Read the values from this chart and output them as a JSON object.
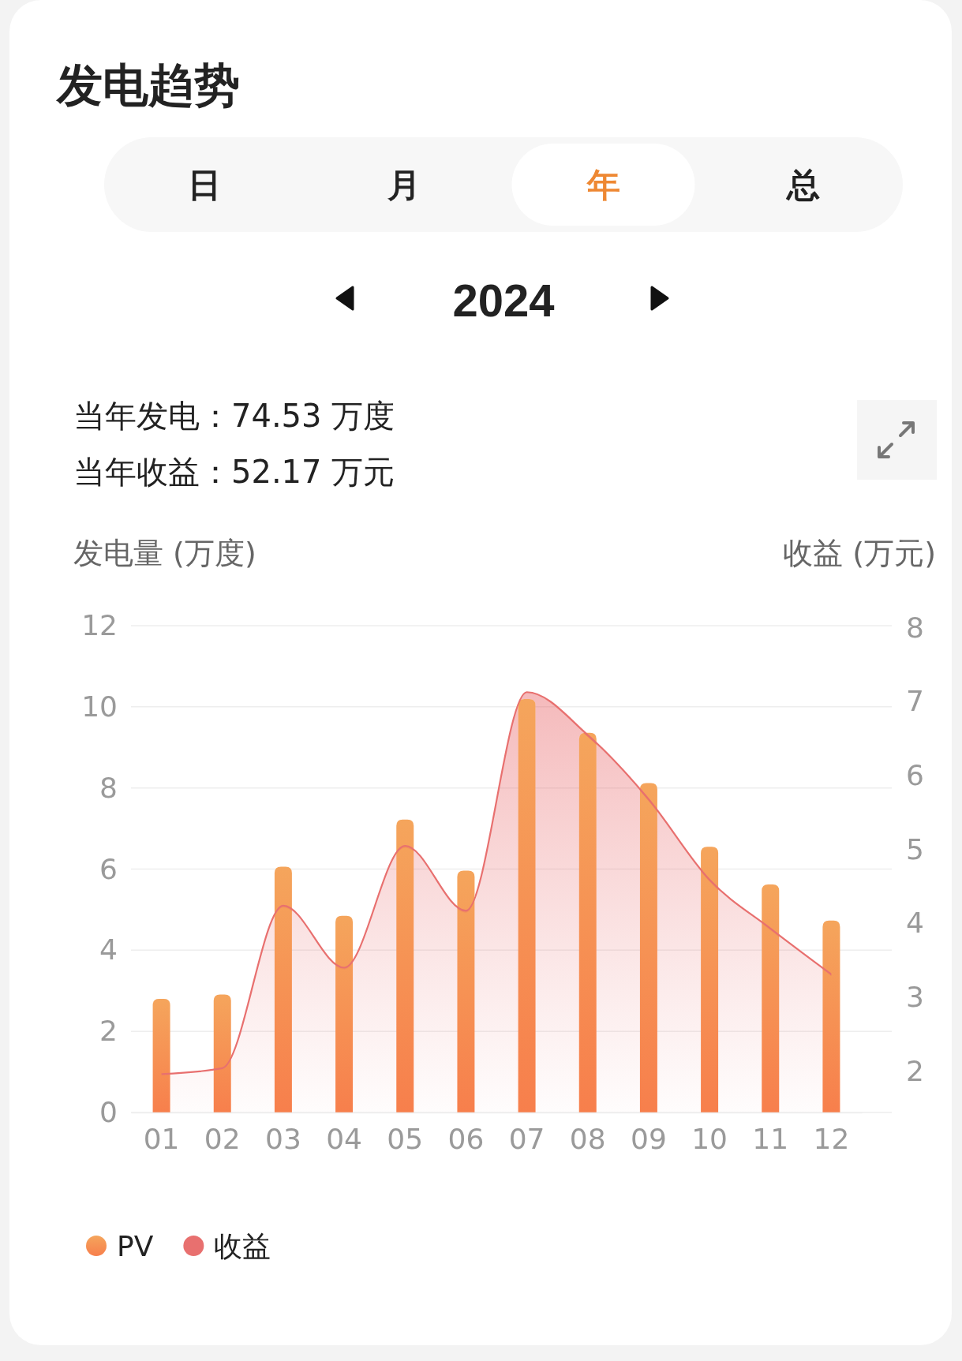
{
  "chart_data": {
    "type": "bar",
    "title": "发电趋势",
    "subtitle": "2024",
    "annotations": [
      "日",
      "月",
      "年",
      "总",
      "当年发电：74.53 万度",
      "当年收益：52.17 万元"
    ],
    "ylabel": "发电量 (万度)",
    "y2label": "收益 (万元)",
    "categories": [
      "01",
      "02",
      "03",
      "04",
      "05",
      "06",
      "07",
      "08",
      "09",
      "10",
      "11",
      "12"
    ],
    "series": [
      {
        "name": "PV",
        "color": "#f69254",
        "values": [
          2.8,
          2.91,
          6.06,
          4.85,
          7.22,
          5.96,
          10.19,
          9.36,
          8.12,
          6.55,
          5.62,
          4.73
        ]
      },
      {
        "name": "收益",
        "type": "area",
        "axis": "y2",
        "color": "#e8706f",
        "values": [
          1.96,
          2.04,
          4.24,
          3.4,
          5.05,
          4.17,
          7.13,
          6.55,
          5.68,
          4.59,
          3.93,
          3.31
        ]
      }
    ],
    "ylim": [
      0,
      12
    ],
    "yticks": [
      0,
      2,
      4,
      6,
      8,
      10,
      12
    ],
    "y2lim": [
      1.44,
      8.03
    ],
    "y2ticks": [
      2,
      3,
      4,
      5,
      6,
      7,
      8
    ],
    "grid": "y",
    "legend": "bottom left"
  }
}
